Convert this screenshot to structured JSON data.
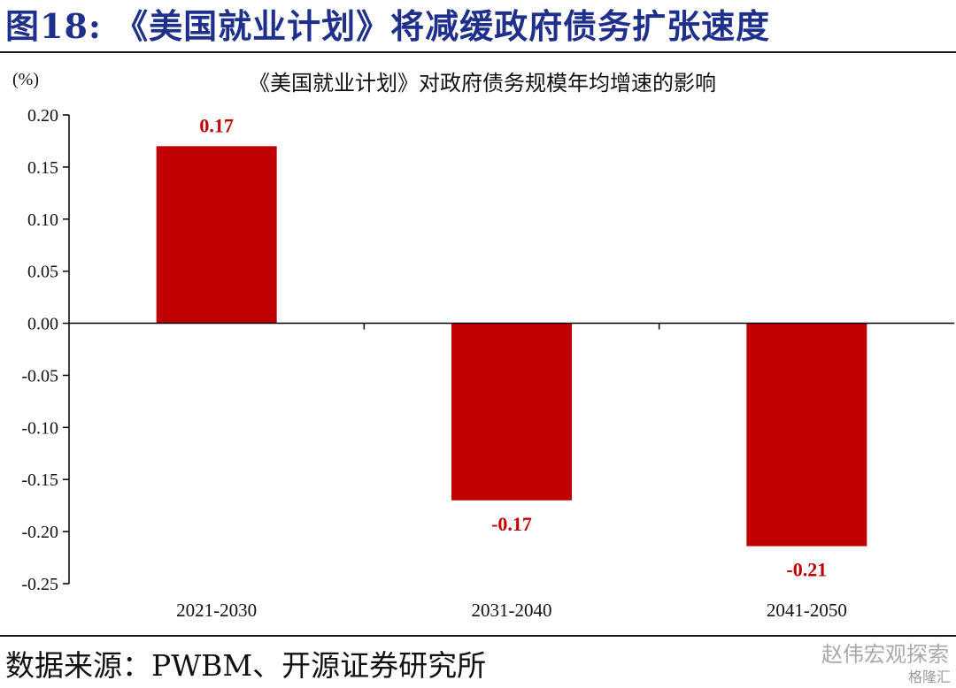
{
  "figure": {
    "title": "图18:  《美国就业计划》将减缓政府债务扩张速度",
    "source": "数据来源：PWBM、开源证券研究所",
    "watermark": "赵伟宏观探索",
    "watermark2": "格隆汇"
  },
  "chart_data": {
    "type": "bar",
    "title": "《美国就业计划》对政府债务规模年均增速的影响",
    "unit_label": "(%)",
    "categories": [
      "2021-2030",
      "2031-2040",
      "2041-2050"
    ],
    "values": [
      0.17,
      -0.17,
      -0.214
    ],
    "value_labels": [
      "0.17",
      "-0.17",
      "-0.21"
    ],
    "ylim": [
      -0.25,
      0.2
    ],
    "yticks": [
      "0.20",
      "0.15",
      "0.10",
      "0.05",
      "0.00",
      "-0.05",
      "-0.10",
      "-0.15",
      "-0.20",
      "-0.25"
    ],
    "ytick_values": [
      0.2,
      0.15,
      0.1,
      0.05,
      0.0,
      -0.05,
      -0.1,
      -0.15,
      -0.2,
      -0.25
    ],
    "bar_color": "#c00000",
    "label_color": "#c00000",
    "title_color": "#1f2f8c",
    "grid": false,
    "legend": "none"
  }
}
